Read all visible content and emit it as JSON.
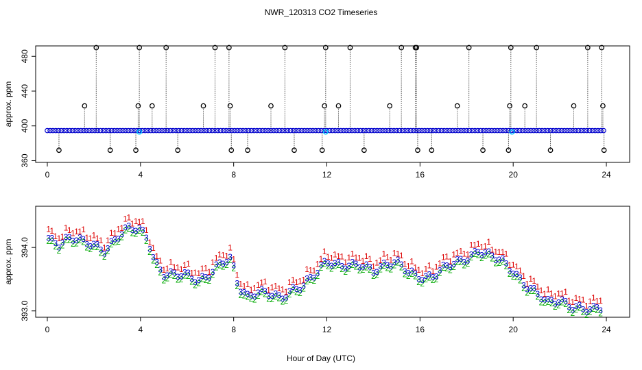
{
  "title": "NWR_120313  CO2 Timeseries",
  "xlabel": "Hour of Day (UTC)",
  "colors": {
    "flag": "#000000",
    "series1": "#dd0000",
    "series2": "#00aa00",
    "series3": "#0000cc",
    "cyan": "#00c8ff",
    "axis": "#000000"
  },
  "chart_data": [
    {
      "type": "scatter",
      "panel": "top",
      "ylabel": "approx. ppm",
      "xlim": [
        -0.5,
        25
      ],
      "ylim": [
        358,
        492
      ],
      "xticks": [
        "0",
        "4",
        "8",
        "12",
        "16",
        "20",
        "24"
      ],
      "xtick_values": [
        0,
        4,
        8,
        12,
        16,
        20,
        24
      ],
      "yticks": [
        "360",
        "400",
        "440",
        "480"
      ],
      "ytick_values": [
        360,
        400,
        440,
        480
      ],
      "baseline": 394.6,
      "flagged_points": [
        {
          "x": 0.5,
          "y": 372
        },
        {
          "x": 1.6,
          "y": 423
        },
        {
          "x": 2.1,
          "y": 490
        },
        {
          "x": 2.7,
          "y": 372
        },
        {
          "x": 3.8,
          "y": 372
        },
        {
          "x": 3.9,
          "y": 423
        },
        {
          "x": 3.95,
          "y": 490
        },
        {
          "x": 4.5,
          "y": 423
        },
        {
          "x": 5.1,
          "y": 490
        },
        {
          "x": 5.6,
          "y": 372
        },
        {
          "x": 6.7,
          "y": 423
        },
        {
          "x": 7.2,
          "y": 490
        },
        {
          "x": 7.8,
          "y": 490
        },
        {
          "x": 7.85,
          "y": 423
        },
        {
          "x": 7.9,
          "y": 372
        },
        {
          "x": 8.6,
          "y": 372
        },
        {
          "x": 9.6,
          "y": 423
        },
        {
          "x": 10.2,
          "y": 490
        },
        {
          "x": 10.6,
          "y": 372
        },
        {
          "x": 11.8,
          "y": 372
        },
        {
          "x": 11.9,
          "y": 423
        },
        {
          "x": 11.95,
          "y": 490
        },
        {
          "x": 12.5,
          "y": 423
        },
        {
          "x": 13.0,
          "y": 490
        },
        {
          "x": 13.6,
          "y": 372
        },
        {
          "x": 14.7,
          "y": 423
        },
        {
          "x": 15.2,
          "y": 490
        },
        {
          "x": 15.8,
          "y": 490
        },
        {
          "x": 15.85,
          "y": 490
        },
        {
          "x": 15.9,
          "y": 372
        },
        {
          "x": 16.5,
          "y": 372
        },
        {
          "x": 17.6,
          "y": 423
        },
        {
          "x": 18.1,
          "y": 490
        },
        {
          "x": 18.7,
          "y": 372
        },
        {
          "x": 19.8,
          "y": 372
        },
        {
          "x": 19.85,
          "y": 423
        },
        {
          "x": 19.9,
          "y": 490
        },
        {
          "x": 20.5,
          "y": 423
        },
        {
          "x": 21.0,
          "y": 490
        },
        {
          "x": 21.6,
          "y": 372
        },
        {
          "x": 22.6,
          "y": 423
        },
        {
          "x": 23.2,
          "y": 490
        },
        {
          "x": 23.8,
          "y": 490
        },
        {
          "x": 23.85,
          "y": 423
        },
        {
          "x": 23.9,
          "y": 372
        }
      ],
      "cyan_points": [
        {
          "x": 3.95,
          "y": 393
        },
        {
          "x": 11.95,
          "y": 393
        },
        {
          "x": 19.95,
          "y": 393
        }
      ]
    },
    {
      "type": "scatter",
      "panel": "bottom",
      "ylabel": "approx. ppm",
      "xlim": [
        -0.5,
        25
      ],
      "ylim": [
        392.9,
        394.65
      ],
      "xticks": [
        "0",
        "4",
        "8",
        "12",
        "16",
        "20",
        "24"
      ],
      "xtick_values": [
        0,
        4,
        8,
        12,
        16,
        20,
        24
      ],
      "yticks": [
        "393.0",
        "394.0"
      ],
      "ytick_values": [
        393.0,
        394.0
      ],
      "series_markers": [
        "1",
        "2",
        "3"
      ],
      "series_offsets": [
        0.12,
        -0.05,
        0.0
      ],
      "profile_x": [
        0,
        0.5,
        1.0,
        1.5,
        2.0,
        2.5,
        3.0,
        3.5,
        4.0,
        4.3,
        4.6,
        5.0,
        5.5,
        6.0,
        6.5,
        7.0,
        7.5,
        7.9,
        8.2,
        8.6,
        9.0,
        9.5,
        10.0,
        10.5,
        11.0,
        11.5,
        12.0,
        12.5,
        13.0,
        13.5,
        14.0,
        14.5,
        15.0,
        15.5,
        16.0,
        16.5,
        17.0,
        17.5,
        18.0,
        18.5,
        19.0,
        19.5,
        20.0,
        20.5,
        21.0,
        21.5,
        22.0,
        22.5,
        23.0,
        23.5,
        23.9
      ],
      "profile_y": [
        394.1,
        394.05,
        394.2,
        394.1,
        394.0,
        393.95,
        394.2,
        394.3,
        394.25,
        394.15,
        393.8,
        393.6,
        393.55,
        393.55,
        393.5,
        393.6,
        393.75,
        393.8,
        393.4,
        393.25,
        393.3,
        393.25,
        393.2,
        393.35,
        393.4,
        393.55,
        393.8,
        393.75,
        393.7,
        393.7,
        393.65,
        393.75,
        393.75,
        393.6,
        393.55,
        393.55,
        393.65,
        393.75,
        393.85,
        393.95,
        393.85,
        393.8,
        393.65,
        393.4,
        393.25,
        393.15,
        393.2,
        393.05,
        393.0,
        393.05,
        393.1
      ]
    }
  ]
}
